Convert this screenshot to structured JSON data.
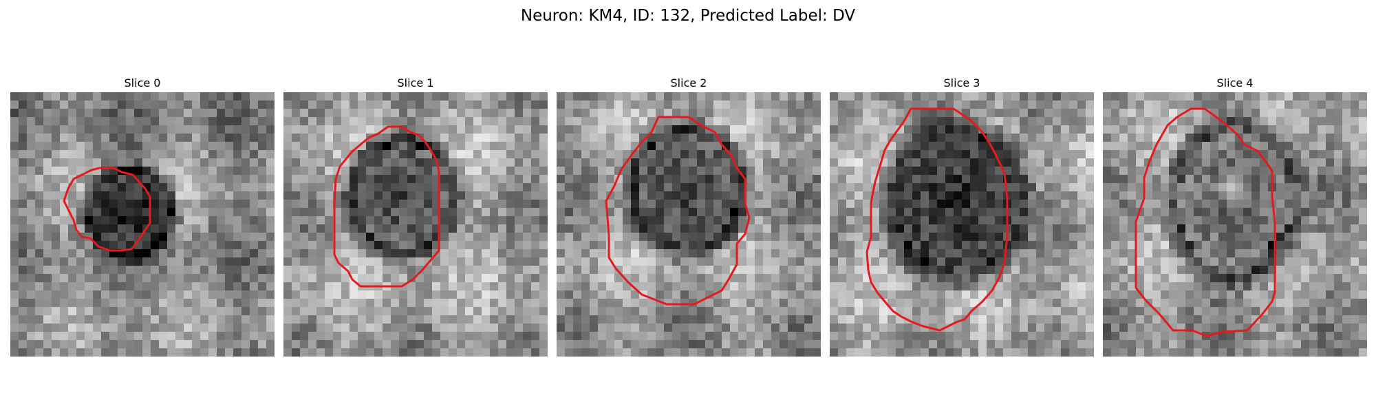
{
  "figure": {
    "title": "Neuron: KM4, ID: 132, Predicted Label: DV"
  },
  "contour_color": "#e41a1c",
  "panels": [
    {
      "title": "Slice 0"
    },
    {
      "title": "Slice 1"
    },
    {
      "title": "Slice 2"
    },
    {
      "title": "Slice 3"
    },
    {
      "title": "Slice 4"
    }
  ]
}
